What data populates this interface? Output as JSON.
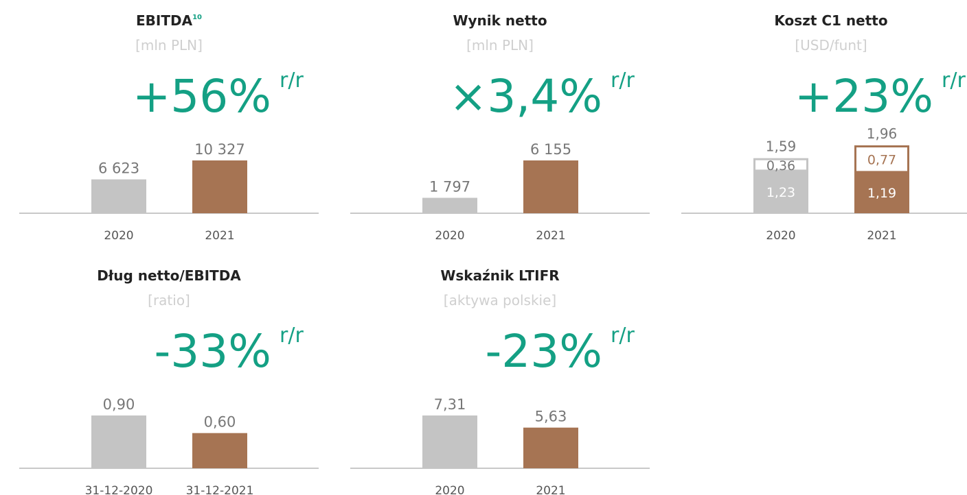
{
  "chart_data": [
    {
      "type": "bar",
      "title": "EBITDA",
      "title_note": "10",
      "subtitle": "[mln PLN]",
      "change": "+56%",
      "change_unit": "r/r",
      "categories": [
        "2020",
        "2021"
      ],
      "values": [
        6623,
        10327
      ],
      "value_labels": [
        "6 623",
        "10 327"
      ],
      "colors": [
        "#c4c4c4",
        "#a67453"
      ]
    },
    {
      "type": "bar",
      "title": "Wynik netto",
      "subtitle": "[mln PLN]",
      "change": "×3,4%",
      "change_unit": "r/r",
      "categories": [
        "2020",
        "2021"
      ],
      "values": [
        1797,
        6155
      ],
      "value_labels": [
        "1 797",
        "6 155"
      ],
      "colors": [
        "#c4c4c4",
        "#a67453"
      ]
    },
    {
      "type": "stacked_bar",
      "title": "Koszt C1 netto",
      "subtitle": "[USD/funt]",
      "change": "+23%",
      "change_unit": "r/r",
      "categories": [
        "2020",
        "2021"
      ],
      "colors": [
        "#c4c4c4",
        "#a67453"
      ],
      "series": [
        {
          "values": [
            1.23,
            1.19
          ],
          "value_labels": [
            "1,23",
            "1,19"
          ]
        },
        {
          "values": [
            0.36,
            0.77
          ],
          "value_labels": [
            "0,36",
            "0,77"
          ]
        }
      ],
      "total_labels": [
        "1,59",
        "1,96"
      ]
    },
    {
      "type": "bar",
      "title": "Dług netto/EBITDA",
      "subtitle": "[ratio]",
      "change": "-33%",
      "change_unit": "r/r",
      "categories": [
        "31-12-2020",
        "31-12-2021"
      ],
      "values": [
        0.9,
        0.6
      ],
      "value_labels": [
        "0,90",
        "0,60"
      ],
      "colors": [
        "#c4c4c4",
        "#a67453"
      ]
    },
    {
      "type": "bar",
      "title": "Wskaźnik LTIFR",
      "subtitle": "[aktywa polskie]",
      "change": "-23%",
      "change_unit": "r/r",
      "categories": [
        "2020",
        "2021"
      ],
      "values": [
        7.31,
        5.63
      ],
      "value_labels": [
        "7,31",
        "5,63"
      ],
      "colors": [
        "#c4c4c4",
        "#a67453"
      ]
    }
  ]
}
